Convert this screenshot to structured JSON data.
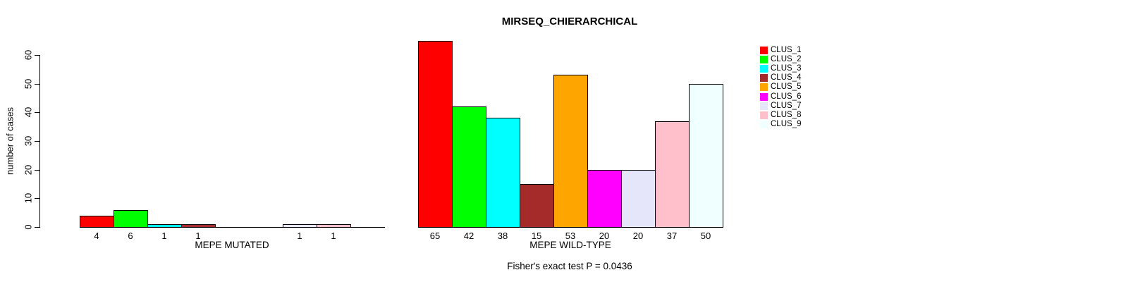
{
  "title": "MIRSEQ_CHIERARCHICAL",
  "footer": {
    "stat_test": "Fisher's exact test P = 0.0436"
  },
  "chart_data": {
    "type": "bar",
    "title": "MIRSEQ_CHIERARCHICAL",
    "xlabel": "",
    "ylabel": "number of cases",
    "ylim": [
      0,
      60
    ],
    "y_ticks": [
      0,
      10,
      20,
      30,
      40,
      50,
      60
    ],
    "grid": false,
    "legend_position": "right",
    "clusters": [
      "CLUS_1",
      "CLUS_2",
      "CLUS_3",
      "CLUS_4",
      "CLUS_5",
      "CLUS_6",
      "CLUS_7",
      "CLUS_8",
      "CLUS_9"
    ],
    "colors": [
      "#FF0000",
      "#00FF00",
      "#00FFFF",
      "#A52A2A",
      "#FFA500",
      "#FF00FF",
      "#E6E6FA",
      "#FFC0CB",
      "#F0FFFF"
    ],
    "groups": [
      {
        "label": "MEPE MUTATED",
        "values": [
          4,
          6,
          1,
          1,
          0,
          0,
          1,
          1,
          0
        ]
      },
      {
        "label": "MEPE WILD-TYPE",
        "values": [
          65,
          42,
          38,
          15,
          53,
          20,
          20,
          37,
          50
        ]
      }
    ],
    "bar_labels_shown_for_zero": false,
    "annotation": "Fisher's exact test P = 0.0436"
  }
}
